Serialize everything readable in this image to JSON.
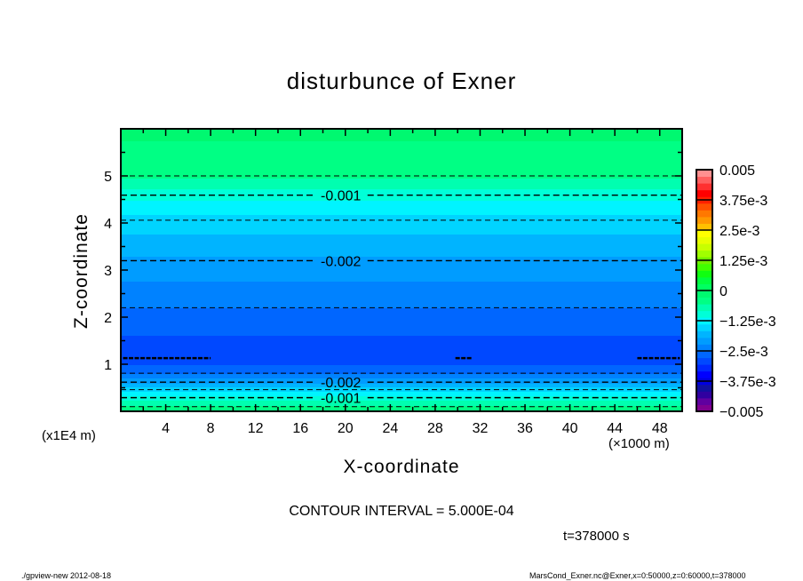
{
  "chart_data": {
    "type": "contour",
    "title": "disturbunce of Exner",
    "xlabel": "X-coordinate",
    "ylabel": "Z-coordinate",
    "x_unit_label": "(×1000 m)",
    "z_unit_label": "(x1E4 m)",
    "xlim": [
      0,
      50
    ],
    "ylim": [
      0,
      6
    ],
    "x_ticks": [
      4,
      8,
      12,
      16,
      20,
      24,
      28,
      32,
      36,
      40,
      44,
      48
    ],
    "x_tick_labels": [
      "4",
      "8",
      "12",
      "16",
      "20",
      "24",
      "28",
      "32",
      "36",
      "40",
      "44",
      "48"
    ],
    "y_ticks": [
      1,
      2,
      3,
      4,
      5
    ],
    "y_tick_labels": [
      "1",
      "2",
      "3",
      "4",
      "5"
    ],
    "contour_interval_text": "CONTOUR INTERVAL = 5.000E-04",
    "time_text": "t=378000 s",
    "profile": [
      {
        "z": 0.0,
        "v": -0.0002
      },
      {
        "z": 0.1,
        "v": -0.0005
      },
      {
        "z": 0.29,
        "v": -0.001
      },
      {
        "z": 0.46,
        "v": -0.0015
      },
      {
        "z": 0.62,
        "v": -0.002
      },
      {
        "z": 0.81,
        "v": -0.0025
      },
      {
        "z": 1.13,
        "v": -0.003
      },
      {
        "z": 2.2,
        "v": -0.0025
      },
      {
        "z": 3.2,
        "v": -0.002
      },
      {
        "z": 4.06,
        "v": -0.0015
      },
      {
        "z": 4.59,
        "v": -0.001
      },
      {
        "z": 5.0,
        "v": -0.0005
      },
      {
        "z": 6.0,
        "v": -0.0002
      }
    ],
    "contours": [
      {
        "level": -0.0005,
        "z": 0.1,
        "label": "-0.001",
        "show_label": false
      },
      {
        "level": -0.001,
        "z": 0.29,
        "label": "-0.001",
        "show_label": true,
        "label_x": 19.6
      },
      {
        "level": -0.0015,
        "z": 0.46,
        "label": "",
        "show_label": false
      },
      {
        "level": -0.002,
        "z": 0.62,
        "label": "-0.002",
        "show_label": true,
        "label_x": 19.6
      },
      {
        "level": -0.0025,
        "z": 0.81,
        "label": "",
        "show_label": false
      },
      {
        "level": -0.0025,
        "z": 2.2,
        "label": "",
        "show_label": false
      },
      {
        "level": -0.002,
        "z": 3.2,
        "label": "-0.002",
        "show_label": true,
        "label_x": 19.6
      },
      {
        "level": -0.0015,
        "z": 4.06,
        "label": "",
        "show_label": false
      },
      {
        "level": -0.001,
        "z": 4.59,
        "label": "-0.001",
        "show_label": true,
        "label_x": 19.6
      },
      {
        "level": -0.0005,
        "z": 5.0,
        "label": "",
        "show_label": false
      }
    ],
    "partial_contours": [
      {
        "level": -0.003,
        "z": 1.13,
        "x_range": [
          0.2,
          8.0
        ]
      },
      {
        "level": -0.003,
        "z": 1.13,
        "x_range": [
          29.8,
          31.3
        ]
      },
      {
        "level": -0.003,
        "z": 1.13,
        "x_range": [
          46.0,
          49.8
        ]
      }
    ],
    "colorbar": {
      "min": -0.005,
      "max": 0.005,
      "labels": [
        "-0.005",
        "-3.75e-3",
        "-2.5e-3",
        "-1.25e-3",
        "0",
        "1.25e-3",
        "2.5e-3",
        "3.75e-3",
        "0.005"
      ],
      "colors": [
        "#800090",
        "#6000a0",
        "#3000a0",
        "#1010a0",
        "#0000e0",
        "#0000ff",
        "#0028ff",
        "#0048ff",
        "#0066ff",
        "#0082ff",
        "#009cff",
        "#00b4ff",
        "#00d4ff",
        "#00f4ff",
        "#00ffd8",
        "#00ffb0",
        "#00ff84",
        "#00f870",
        "#00ff60",
        "#00ff40",
        "#10ff10",
        "#40ff00",
        "#70f000",
        "#a0ff00",
        "#c8ff00",
        "#e8ff00",
        "#ffff00",
        "#ffc000",
        "#ff9800",
        "#ff7800",
        "#ff5000",
        "#ff2000"
      ],
      "top_colors": [
        "#ff0000",
        "#ff3030",
        "#ff6060",
        "#ff9090"
      ]
    }
  },
  "footer": {
    "left": "./gpview-new   2012-08-18",
    "right": "MarsCond_Exner.nc@Exner,x=0:50000,z=0:60000,t=378000"
  }
}
